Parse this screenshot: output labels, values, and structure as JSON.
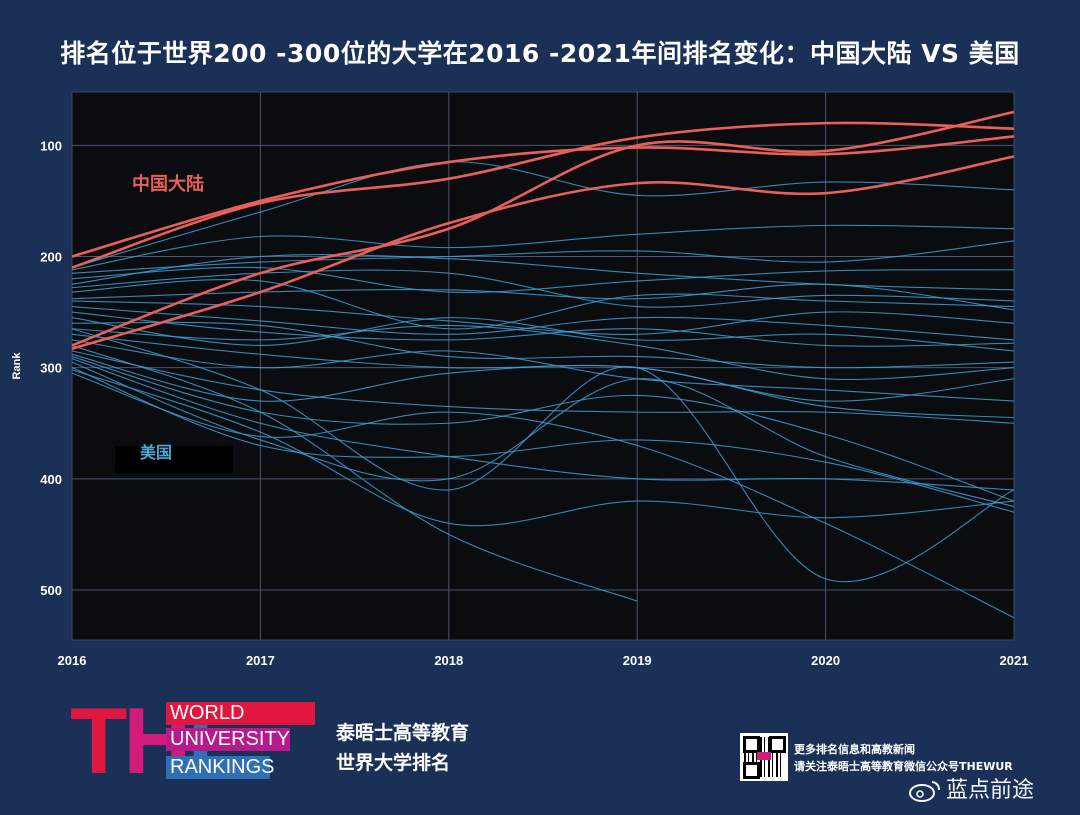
{
  "title": "排名位于世界200 -300位的大学在2016 -2021年间排名变化：中国大陆 VS 美国",
  "chart_data": {
    "type": "line",
    "ylabel": "Rank",
    "x": [
      2016,
      2017,
      2018,
      2019,
      2020,
      2021
    ],
    "xlim": [
      2016,
      2021
    ],
    "ylim": [
      52,
      545
    ],
    "y_inverted": true,
    "y_ticks": [
      100,
      200,
      300,
      400,
      500
    ],
    "grid": true,
    "annotations": [
      {
        "text": "中国大陆",
        "color": "#e8605a"
      },
      {
        "text": "美国",
        "color": "#4fa6d6"
      }
    ],
    "groups": [
      {
        "name": "中国大陆",
        "color": "#e8605a",
        "series": [
          {
            "values": [
              200,
              150,
              115,
              102,
              108,
              92
            ]
          },
          {
            "values": [
              210,
              152,
              130,
              93,
              80,
              85
            ]
          },
          {
            "values": [
              280,
              215,
              175,
              100,
              105,
              70
            ]
          },
          {
            "values": [
              283,
              232,
              170,
              134,
              143,
              110
            ]
          }
        ]
      },
      {
        "name": "美国",
        "color": "#3d9fd4",
        "series": [
          {
            "values": [
              210,
              160,
              115,
              145,
              133,
              140
            ]
          },
          {
            "values": [
              212,
              182,
              192,
              180,
              172,
              175
            ]
          },
          {
            "values": [
              215,
              205,
              200,
              195,
              205,
              186
            ]
          },
          {
            "values": [
              220,
              210,
              232,
              222,
              213,
              212
            ]
          },
          {
            "values": [
              225,
              200,
              202,
              215,
              225,
              230
            ]
          },
          {
            "values": [
              228,
              215,
              215,
              245,
              235,
              240
            ]
          },
          {
            "values": [
              232,
              222,
              265,
              235,
              240,
              245
            ]
          },
          {
            "values": [
              238,
              232,
              230,
              238,
              225,
              248
            ]
          },
          {
            "values": [
              240,
              245,
              258,
              270,
              250,
              260
            ]
          },
          {
            "values": [
              245,
              258,
              270,
              255,
              262,
              275
            ]
          },
          {
            "values": [
              250,
              268,
              275,
              265,
              280,
              278
            ]
          },
          {
            "values": [
              255,
              280,
              255,
              275,
              270,
              285
            ]
          },
          {
            "values": [
              260,
              262,
              290,
              290,
              300,
              295
            ]
          },
          {
            "values": [
              265,
              275,
              262,
              280,
              310,
              300
            ]
          },
          {
            "values": [
              270,
              288,
              300,
              300,
              330,
              310
            ]
          },
          {
            "values": [
              275,
              300,
              285,
              310,
              320,
              330
            ]
          },
          {
            "values": [
              288,
              330,
              305,
              300,
              335,
              345
            ]
          },
          {
            "values": [
              285,
              320,
              335,
              340,
              340,
              350
            ]
          },
          {
            "values": [
              290,
              340,
              350,
              325,
              360,
              420
            ]
          },
          {
            "values": [
              292,
              350,
              380,
              400,
              400,
              410
            ]
          },
          {
            "values": [
              295,
              365,
              400,
              310,
              380,
              425
            ]
          },
          {
            "values": [
              300,
              370,
              380,
              365,
              385,
              430
            ]
          },
          {
            "values": [
              302,
              358,
              440,
              420,
              435,
              420
            ]
          },
          {
            "values": [
              305,
              362,
              340,
              370,
              440,
              525
            ]
          },
          {
            "values": [
              280,
              340,
              450,
              510
            ]
          },
          {
            "values": [
              265,
              320,
              410,
              300,
              490,
              410
            ]
          }
        ]
      }
    ]
  },
  "logo": {
    "mark": "THE",
    "line1": "WORLD",
    "line2": "UNIVERSITY",
    "line3": "RANKINGS"
  },
  "brand_cn": {
    "line1": "泰晤士高等教育",
    "line2": "世界大学排名"
  },
  "follow": {
    "line1": "更多排名信息和高教新闻",
    "line2": "请关注泰晤士高等教育微信公众号THEWUR"
  },
  "watermark": "蓝点前途"
}
